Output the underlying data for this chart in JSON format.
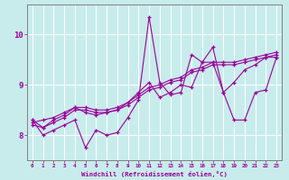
{
  "xlabel": "Windchill (Refroidissement éolien,°C)",
  "bg_color": "#c8ecec",
  "line_color": "#990099",
  "grid_color": "#ffffff",
  "spine_color": "#808080",
  "xlim": [
    -0.5,
    23.5
  ],
  "ylim": [
    7.5,
    10.6
  ],
  "xticks": [
    0,
    1,
    2,
    3,
    4,
    5,
    6,
    7,
    8,
    9,
    10,
    11,
    12,
    13,
    14,
    15,
    16,
    17,
    18,
    19,
    20,
    21,
    22,
    23
  ],
  "yticks": [
    8,
    9,
    10
  ],
  "series": [
    [
      8.3,
      8.0,
      8.1,
      8.2,
      8.3,
      7.75,
      8.1,
      8.0,
      8.05,
      8.35,
      8.7,
      10.35,
      9.05,
      8.8,
      8.85,
      9.6,
      9.45,
      9.45,
      8.85,
      8.3,
      8.3,
      8.85,
      8.9,
      9.55
    ],
    [
      8.3,
      8.15,
      8.25,
      8.35,
      8.5,
      8.5,
      8.45,
      8.45,
      8.5,
      8.6,
      8.75,
      8.9,
      8.95,
      9.05,
      9.1,
      9.25,
      9.3,
      9.4,
      9.4,
      9.4,
      9.45,
      9.5,
      9.55,
      9.6
    ],
    [
      8.25,
      8.3,
      8.35,
      8.45,
      8.55,
      8.55,
      8.5,
      8.5,
      8.55,
      8.65,
      8.8,
      8.95,
      9.0,
      9.1,
      9.15,
      9.3,
      9.35,
      9.45,
      9.45,
      9.45,
      9.5,
      9.55,
      9.6,
      9.65
    ],
    [
      8.2,
      8.15,
      8.3,
      8.4,
      8.55,
      8.45,
      8.4,
      8.45,
      8.5,
      8.65,
      8.85,
      9.05,
      8.75,
      8.85,
      9.0,
      8.95,
      9.45,
      9.75,
      8.85,
      9.05,
      9.3,
      9.4,
      9.55,
      9.55
    ]
  ]
}
